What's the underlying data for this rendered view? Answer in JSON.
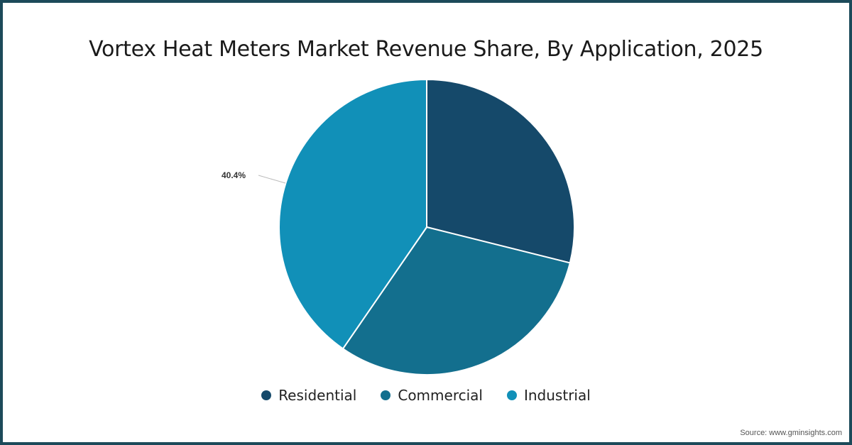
{
  "title": "Vortex Heat Meters Market Revenue Share, By Application, 2025",
  "source": "Source: www.gminsights.com",
  "data_label": "40.4%",
  "legend": [
    {
      "label": "Residential",
      "color": "#15496a"
    },
    {
      "label": "Commercial",
      "color": "#136f8e"
    },
    {
      "label": "Industrial",
      "color": "#1190b8"
    }
  ],
  "chart_data": {
    "type": "pie",
    "title": "Vortex Heat Meters Market Revenue Share, By Application, 2025",
    "categories": [
      "Residential",
      "Commercial",
      "Industrial"
    ],
    "values": [
      28.9,
      30.7,
      40.4
    ],
    "colors": [
      "#15496a",
      "#136f8e",
      "#1190b8"
    ],
    "data_labels": {
      "Industrial": "40.4%"
    },
    "legend_position": "bottom",
    "start_angle": "top, clockwise"
  }
}
